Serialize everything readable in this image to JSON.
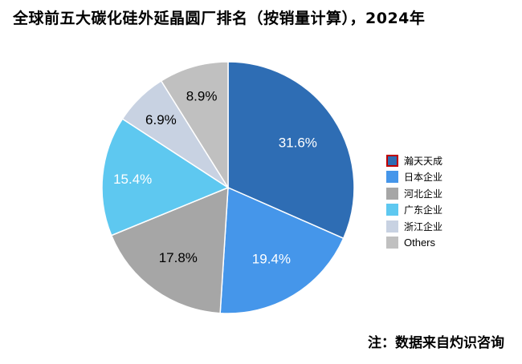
{
  "chart_data": {
    "type": "pie",
    "title": "全球前五大碳化硅外延晶圆厂排名（按销量计算），2024年",
    "slices": [
      {
        "label": "瀚天天成",
        "value": 31.6,
        "display": "31.6%",
        "color": "#2e6db4"
      },
      {
        "label": "日本企业",
        "value": 19.4,
        "display": "19.4%",
        "color": "#4596ea"
      },
      {
        "label": "河北企业",
        "value": 17.8,
        "display": "17.8%",
        "color": "#a6a6a6"
      },
      {
        "label": "广东企业",
        "value": 15.4,
        "display": "15.4%",
        "color": "#5ec8f0"
      },
      {
        "label": "浙江企业",
        "value": 6.9,
        "display": "6.9%",
        "color": "#c8d2e2"
      },
      {
        "label": "Others",
        "value": 8.9,
        "display": "8.9%",
        "color": "#c0c0c0"
      }
    ],
    "legend_position": "right"
  },
  "source_note": "注：数据来自灼识咨询"
}
